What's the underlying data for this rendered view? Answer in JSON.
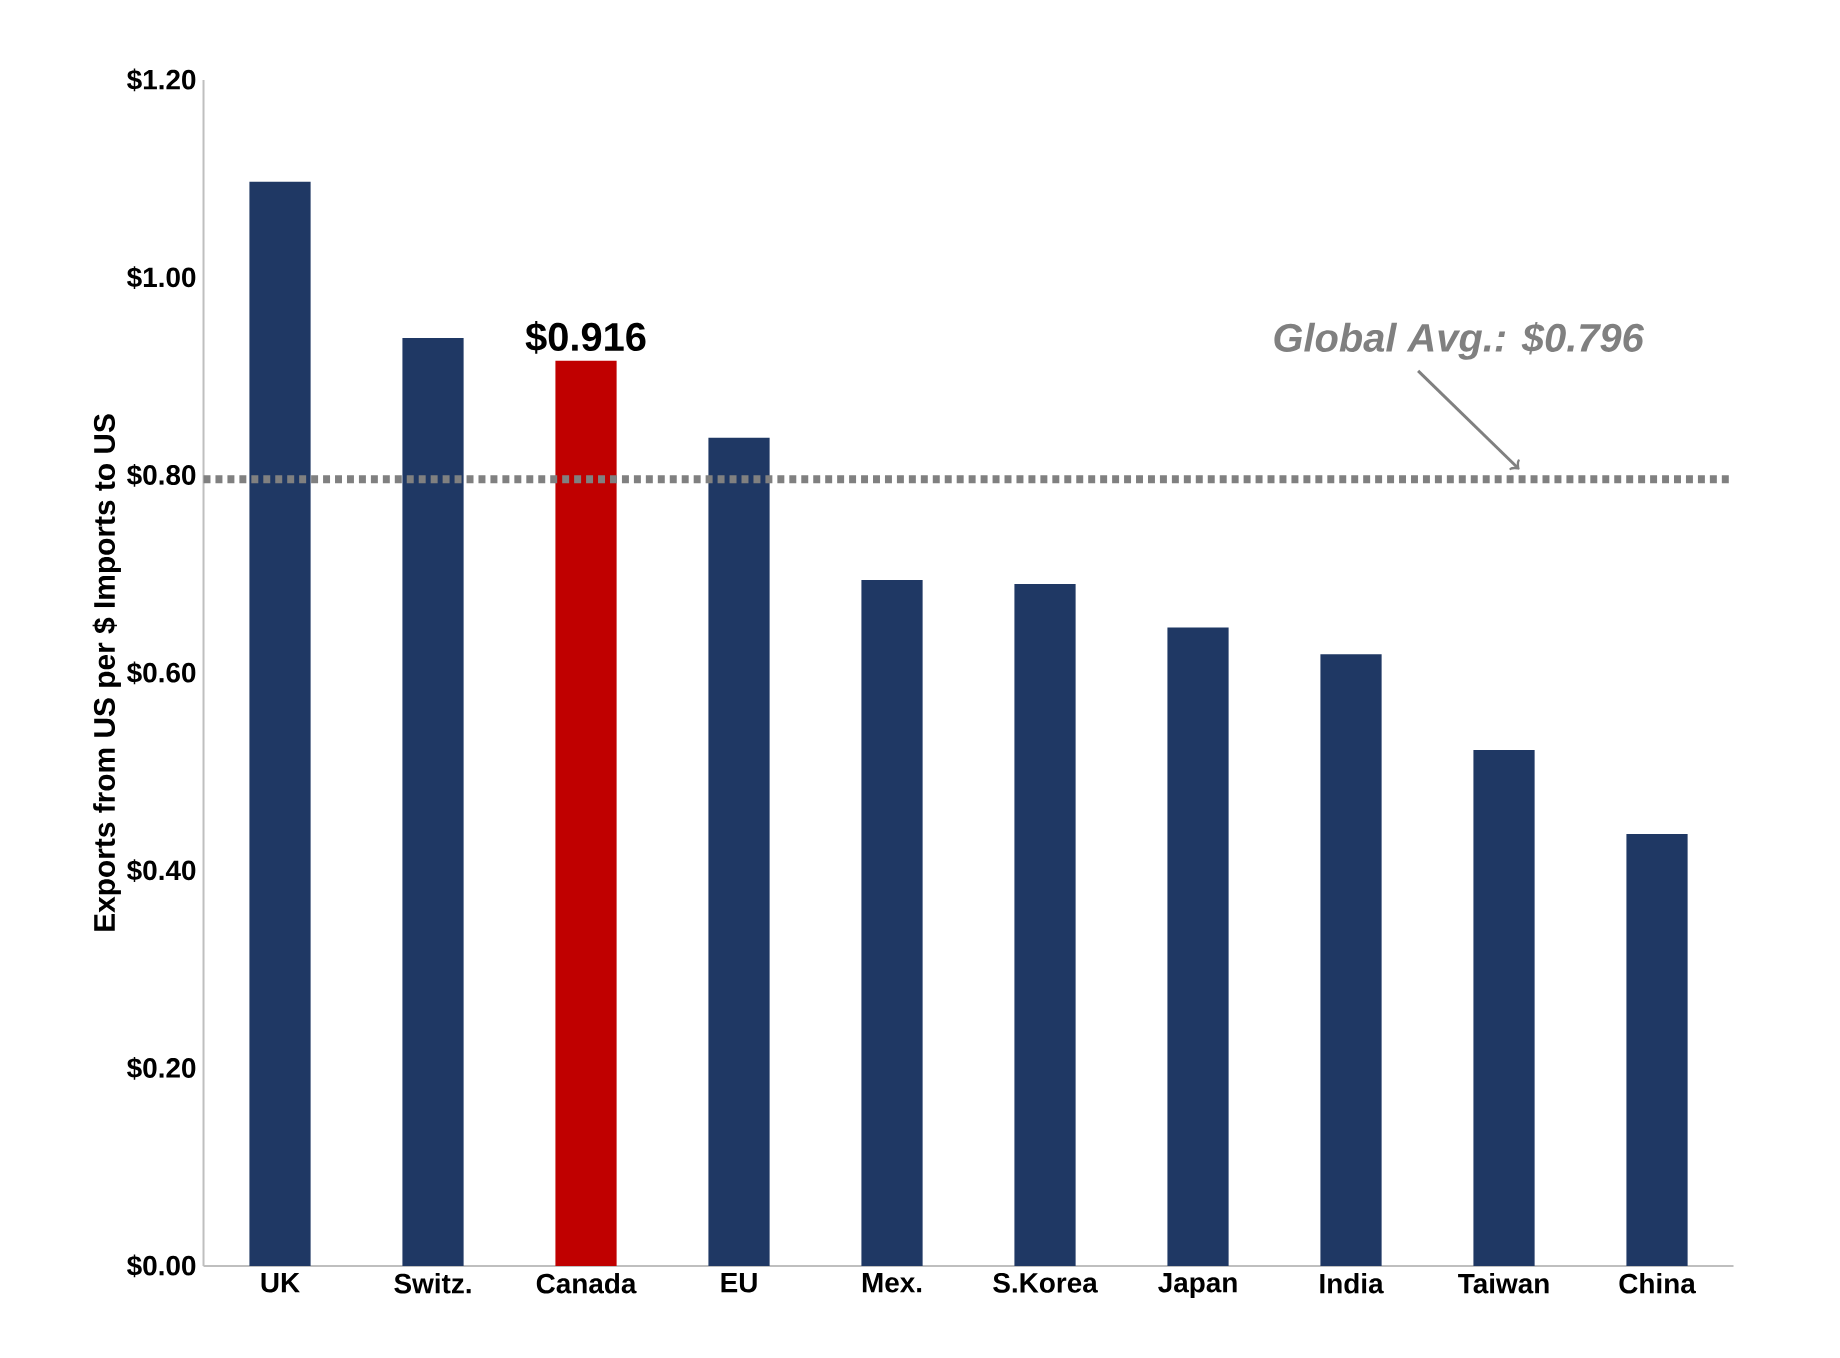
{
  "chart_data": {
    "type": "bar",
    "ylabel": "Exports from US per $ Imports to US",
    "categories": [
      "UK",
      "Switz.",
      "Canada",
      "EU",
      "Mex.",
      "S.Korea",
      "Japan",
      "India",
      "Taiwan",
      "China"
    ],
    "values": [
      1.097,
      0.939,
      0.916,
      0.838,
      0.694,
      0.69,
      0.646,
      0.619,
      0.522,
      0.437
    ],
    "colors": [
      "#1f3864",
      "#1f3864",
      "#c00000",
      "#1f3864",
      "#1f3864",
      "#1f3864",
      "#1f3864",
      "#1f3864",
      "#1f3864",
      "#1f3864"
    ],
    "value_labels": [
      null,
      null,
      "$0.916",
      null,
      null,
      null,
      null,
      null,
      null,
      null
    ],
    "ylim": [
      0,
      1.2
    ],
    "yticks": [
      {
        "value": 0,
        "label": "$0.00"
      },
      {
        "value": 0.2,
        "label": "$0.20"
      },
      {
        "value": 0.4,
        "label": "$0.40"
      },
      {
        "value": 0.6,
        "label": "$0.60"
      },
      {
        "value": 0.8,
        "label": "$0.80"
      },
      {
        "value": 1.0,
        "label": "$1.00"
      },
      {
        "value": 1.2,
        "label": "$1.20"
      }
    ],
    "ref_lines": [
      {
        "axis": "y",
        "value": 0.796,
        "label": "Global Avg.: $0.796",
        "color": "#808080",
        "line_style": "dotted"
      }
    ],
    "grid": false
  }
}
